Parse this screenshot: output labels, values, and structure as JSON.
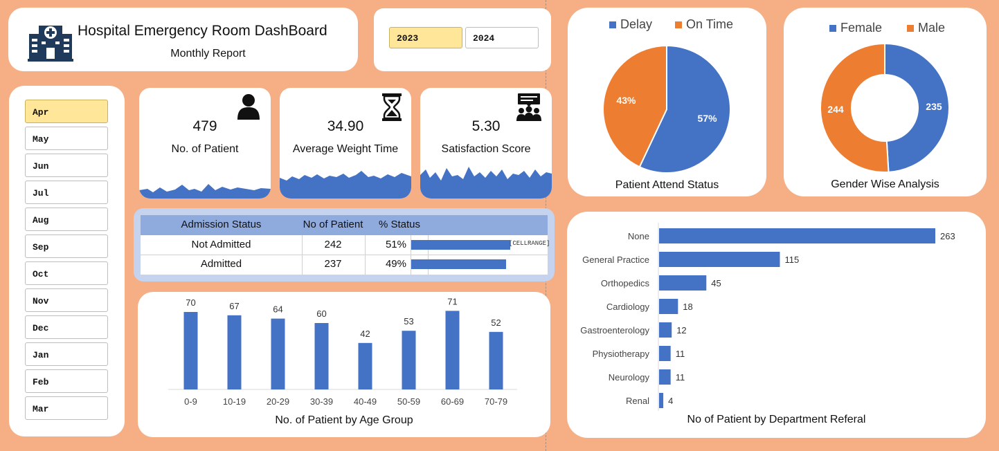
{
  "header": {
    "title": "Hospital Emergency Room DashBoard",
    "subtitle": "Monthly Report"
  },
  "years": {
    "items": [
      "2023",
      "2024"
    ],
    "selected": "2023"
  },
  "months": {
    "items": [
      "Apr",
      "May",
      "Jun",
      "Jul",
      "Aug",
      "Sep",
      "Oct",
      "Nov",
      "Dec",
      "Jan",
      "Feb",
      "Mar"
    ],
    "selected": "Apr"
  },
  "kpis": [
    {
      "value": "479",
      "label": "No. of Patient",
      "icon": "person-icon"
    },
    {
      "value": "34.90",
      "label": "Average Weight Time",
      "icon": "hourglass-icon"
    },
    {
      "value": "5.30",
      "label": "Satisfaction Score",
      "icon": "group-meeting-icon"
    }
  ],
  "admission": {
    "headers": [
      "Admission Status",
      "No of Patient",
      "% Status"
    ],
    "rows": [
      {
        "status": "Not Admitted",
        "count": "242",
        "pct": "51%",
        "fraction": 0.51
      },
      {
        "status": "Admitted",
        "count": "237",
        "pct": "49%",
        "fraction": 0.49
      }
    ],
    "label_artifact": "[CELLRANGE]"
  },
  "colors": {
    "blue": "#4472c4",
    "orange": "#ed7d31",
    "header_blue": "#8faadc",
    "selected": "#ffe699"
  },
  "chart_data": [
    {
      "type": "bar",
      "title": "No. of Patient by Age Group",
      "categories": [
        "0-9",
        "10-19",
        "20-29",
        "30-39",
        "40-49",
        "50-59",
        "60-69",
        "70-79"
      ],
      "values": [
        70,
        67,
        64,
        60,
        42,
        53,
        71,
        52
      ],
      "ylim": [
        0,
        80
      ],
      "grid": false
    },
    {
      "type": "pie",
      "title": "Patient Attend Status",
      "labels": [
        "Delay",
        "On Time"
      ],
      "values": [
        57,
        43
      ],
      "value_labels": [
        "57%",
        "43%"
      ],
      "legend": "top"
    },
    {
      "type": "pie",
      "subtype": "donut",
      "title": "Gender Wise Analysis",
      "labels": [
        "Female",
        "Male"
      ],
      "values": [
        235,
        244
      ],
      "value_labels": [
        "235",
        "244"
      ],
      "legend": "top"
    },
    {
      "type": "bar",
      "orientation": "horizontal",
      "title": "No of Patient by Department Referal",
      "categories": [
        "None",
        "General Practice",
        "Orthopedics",
        "Cardiology",
        "Gastroenterology",
        "Physiotherapy",
        "Neurology",
        "Renal"
      ],
      "values": [
        263,
        115,
        45,
        18,
        12,
        11,
        11,
        4
      ],
      "xlim": [
        0,
        290
      ]
    }
  ]
}
